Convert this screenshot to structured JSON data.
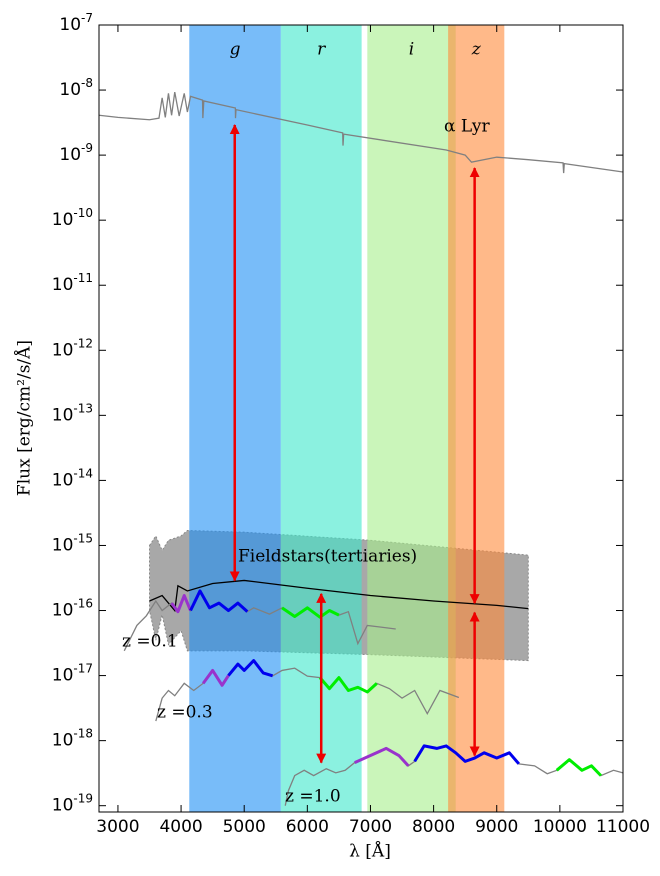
{
  "chart_data": {
    "type": "line",
    "x_label": "λ   [Å]",
    "y_label": "Flux   [erg/cm²/s/Å]",
    "xlim": [
      2700,
      11000
    ],
    "ylim": [
      8e-20,
      1e-07
    ],
    "yscale": "log",
    "xticks": [
      3000,
      4000,
      5000,
      6000,
      7000,
      8000,
      9000,
      10000,
      11000
    ],
    "yticks": [
      {
        "value": 1e-19,
        "label": "10^-19"
      },
      {
        "value": 1e-18,
        "label": "10^-18"
      },
      {
        "value": 1e-17,
        "label": "10^-17"
      },
      {
        "value": 1e-16,
        "label": "10^-16"
      },
      {
        "value": 1e-15,
        "label": "10^-15"
      },
      {
        "value": 1e-14,
        "label": "10^-14"
      },
      {
        "value": 1e-13,
        "label": "10^-13"
      },
      {
        "value": 1e-12,
        "label": "10^-12"
      },
      {
        "value": 1e-11,
        "label": "10^-11"
      },
      {
        "value": 1e-10,
        "label": "10^-10"
      },
      {
        "value": 1e-09,
        "label": "10^-9"
      },
      {
        "value": 1e-08,
        "label": "10^-8"
      },
      {
        "value": 1e-07,
        "label": "10^-7"
      }
    ],
    "band_alpha": 0.6,
    "bands": [
      {
        "label": "g",
        "range": [
          4130,
          5580
        ],
        "color": "#1e8ff5"
      },
      {
        "label": "r",
        "range": [
          5580,
          6860
        ],
        "color": "#3de8cc"
      },
      {
        "label": "i",
        "range": [
          6950,
          8350
        ],
        "color": "#a6ee8c"
      },
      {
        "label": "z",
        "range": [
          8230,
          9120
        ],
        "color": "#ff8a3a"
      }
    ],
    "fill_between": {
      "color": "#a8a8a8",
      "edge_color": "#888888",
      "x": [
        3500,
        3600,
        3700,
        3800,
        4000,
        4100,
        5000,
        7000,
        9500
      ],
      "lower": [
        1e-16,
        3.5e-17,
        8.6e-17,
        3e-17,
        4.9e-17,
        2.4e-17,
        2.4e-17,
        2.1e-17,
        1.7e-17
      ],
      "upper": [
        1e-15,
        1.4e-15,
        8.4e-16,
        1.2e-15,
        1.4e-15,
        1.7e-15,
        1.6e-15,
        1.2e-15,
        7.1e-16
      ]
    },
    "series": [
      {
        "color": "#808080",
        "x": [
          2700,
          3000,
          3500,
          3650,
          3700,
          3750,
          3800,
          3850,
          3900,
          3970,
          4050,
          4100,
          4150,
          4340,
          4345,
          4360,
          4860,
          4862,
          4870,
          6000,
          6560,
          6565,
          6575,
          8200,
          8500,
          8600,
          9000,
          9500,
          10050,
          10060,
          10070,
          11000
        ],
        "values": [
          4.1e-09,
          3.8e-09,
          3.5e-09,
          3.7e-09,
          7.6e-09,
          3.8e-09,
          8.9e-09,
          4.1e-09,
          9.3e-09,
          4e-09,
          8.9e-09,
          4.6e-09,
          8e-09,
          7e-09,
          3.7e-09,
          6.8e-09,
          5.3e-09,
          3.7e-09,
          5e-09,
          2.9e-09,
          2.2e-09,
          1.4e-09,
          2.1e-09,
          1.2e-09,
          1e-09,
          7.8e-10,
          9.3e-10,
          8.5e-10,
          7.6e-10,
          5.3e-10,
          7.4e-10,
          5.5e-10
        ]
      },
      {
        "color": "#000000",
        "x": [
          3500,
          3700,
          3900,
          3950,
          4100,
          4500,
          5000,
          6000,
          7000,
          8000,
          9000,
          9500
        ],
        "values": [
          1.4e-16,
          1.7e-16,
          1e-16,
          2.4e-16,
          2e-16,
          2.6e-16,
          2.9e-16,
          2.2e-16,
          1.7e-16,
          1.4e-16,
          1.2e-16,
          1.07e-16
        ]
      },
      {
        "color": "#808080",
        "x": [
          3100,
          3300,
          3450,
          3600,
          3700,
          3850,
          3950,
          4050,
          4150,
          4300,
          4450,
          4600,
          4750,
          4900,
          5050,
          5150,
          5400,
          5600,
          5800,
          6000,
          6200,
          6350,
          6500,
          6650,
          6800,
          6950,
          7400
        ],
        "values": [
          2.4e-17,
          5.9e-17,
          8.3e-17,
          1.4e-16,
          1e-16,
          1.3e-16,
          9.6e-17,
          1.7e-16,
          1e-16,
          2e-16,
          1.1e-16,
          1.3e-16,
          1e-16,
          1.3e-16,
          9.6e-17,
          1.1e-16,
          8.8e-17,
          1.1e-16,
          8.1e-17,
          1.1e-16,
          7.9e-17,
          1e-16,
          8.5e-17,
          9.6e-17,
          3.1e-17,
          5.9e-17,
          5.2e-17
        ],
        "colors": [
          "#808080",
          "#808080",
          "#808080",
          "#808080",
          "#808080",
          "#9933cc",
          "#9933cc",
          "#9933cc",
          "#0000ee",
          "#0000ee",
          "#0000ee",
          "#0000ee",
          "#0000ee",
          "#0000ee",
          "#808080",
          "#808080",
          "#808080",
          "#00ee00",
          "#00ee00",
          "#00ee00",
          "#00ee00",
          "#00ee00",
          "#808080",
          "#808080",
          "#808080",
          "#808080",
          "#808080"
        ]
      },
      {
        "color": "#808080",
        "x": [
          3600,
          3700,
          3800,
          3900,
          4050,
          4200,
          4350,
          4500,
          4650,
          4750,
          4900,
          5000,
          5150,
          5300,
          5450,
          5600,
          5800,
          6000,
          6200,
          6350,
          6500,
          6650,
          6800,
          6950,
          7100,
          7300,
          7500,
          7700,
          7900,
          8100,
          8400
        ],
        "values": [
          2e-18,
          4.5e-18,
          5.9e-18,
          4.9e-18,
          7.6e-18,
          5.9e-18,
          7.6e-18,
          1.2e-17,
          7.1e-18,
          1e-17,
          1.5e-17,
          1.2e-17,
          1.7e-17,
          1.1e-17,
          9.9e-18,
          1.2e-17,
          1.3e-17,
          9.8e-18,
          9.3e-18,
          6.3e-18,
          9.3e-18,
          5.9e-18,
          6.6e-18,
          5.6e-18,
          7.6e-18,
          6.3e-18,
          4.5e-18,
          5.9e-18,
          2.6e-18,
          5.9e-18,
          4.6e-18
        ],
        "colors": [
          "#808080",
          "#808080",
          "#808080",
          "#808080",
          "#808080",
          "#808080",
          "#9933cc",
          "#9933cc",
          "#9933cc",
          "#0000ee",
          "#0000ee",
          "#0000ee",
          "#0000ee",
          "#0000ee",
          "#808080",
          "#808080",
          "#808080",
          "#808080",
          "#00ee00",
          "#00ee00",
          "#00ee00",
          "#00ee00",
          "#00ee00",
          "#00ee00",
          "#808080",
          "#808080",
          "#808080",
          "#808080",
          "#808080",
          "#808080",
          "#808080"
        ]
      },
      {
        "color": "#808080",
        "x": [
          5650,
          5700,
          5800,
          5950,
          6100,
          6300,
          6450,
          6600,
          6750,
          7000,
          7250,
          7450,
          7600,
          7700,
          7850,
          8050,
          8200,
          8350,
          8500,
          8650,
          8800,
          9000,
          9200,
          9350,
          9600,
          9800,
          9950,
          10150,
          10350,
          10500,
          10650,
          10850,
          11000
        ],
        "values": [
          1e-19,
          1.7e-19,
          2.9e-19,
          3.5e-19,
          2.9e-19,
          3.7e-19,
          3.2e-19,
          3.5e-19,
          4.6e-19,
          5.9e-19,
          7.6e-19,
          5.9e-19,
          4.1e-19,
          4.8e-19,
          8.3e-19,
          7.6e-19,
          8.3e-19,
          6.5e-19,
          4.8e-19,
          5.4e-19,
          6.5e-19,
          5.4e-19,
          6.5e-19,
          4.4e-19,
          4.1e-19,
          3.1e-19,
          3.5e-19,
          5.1e-19,
          3.5e-19,
          4.1e-19,
          2.9e-19,
          3.5e-19,
          3.2e-19
        ],
        "colors": [
          "#808080",
          "#808080",
          "#808080",
          "#808080",
          "#808080",
          "#808080",
          "#808080",
          "#808080",
          "#9933cc",
          "#9933cc",
          "#9933cc",
          "#9933cc",
          "#808080",
          "#0000ee",
          "#0000ee",
          "#0000ee",
          "#0000ee",
          "#0000ee",
          "#0000ee",
          "#0000ee",
          "#0000ee",
          "#0000ee",
          "#0000ee",
          "#808080",
          "#808080",
          "#808080",
          "#00ee00",
          "#00ee00",
          "#00ee00",
          "#00ee00",
          "#808080",
          "#808080",
          "#808080"
        ]
      }
    ],
    "arrow_color": "#ee0000",
    "arrows": [
      {
        "x": 4850,
        "y": [
          2.9e-09,
          2.9e-16
        ]
      },
      {
        "x": 8650,
        "y": [
          6.3e-10,
          1.3e-16
        ]
      },
      {
        "x": 6220,
        "y": [
          1.8e-16,
          4.6e-19
        ]
      },
      {
        "x": 8650,
        "y": [
          9.3e-17,
          5.9e-19
        ]
      }
    ],
    "annotations": [
      "α  Lyr",
      "Fieldstars(tertiaries)",
      "z =0.1",
      "z =0.3",
      "z =1.0"
    ]
  }
}
